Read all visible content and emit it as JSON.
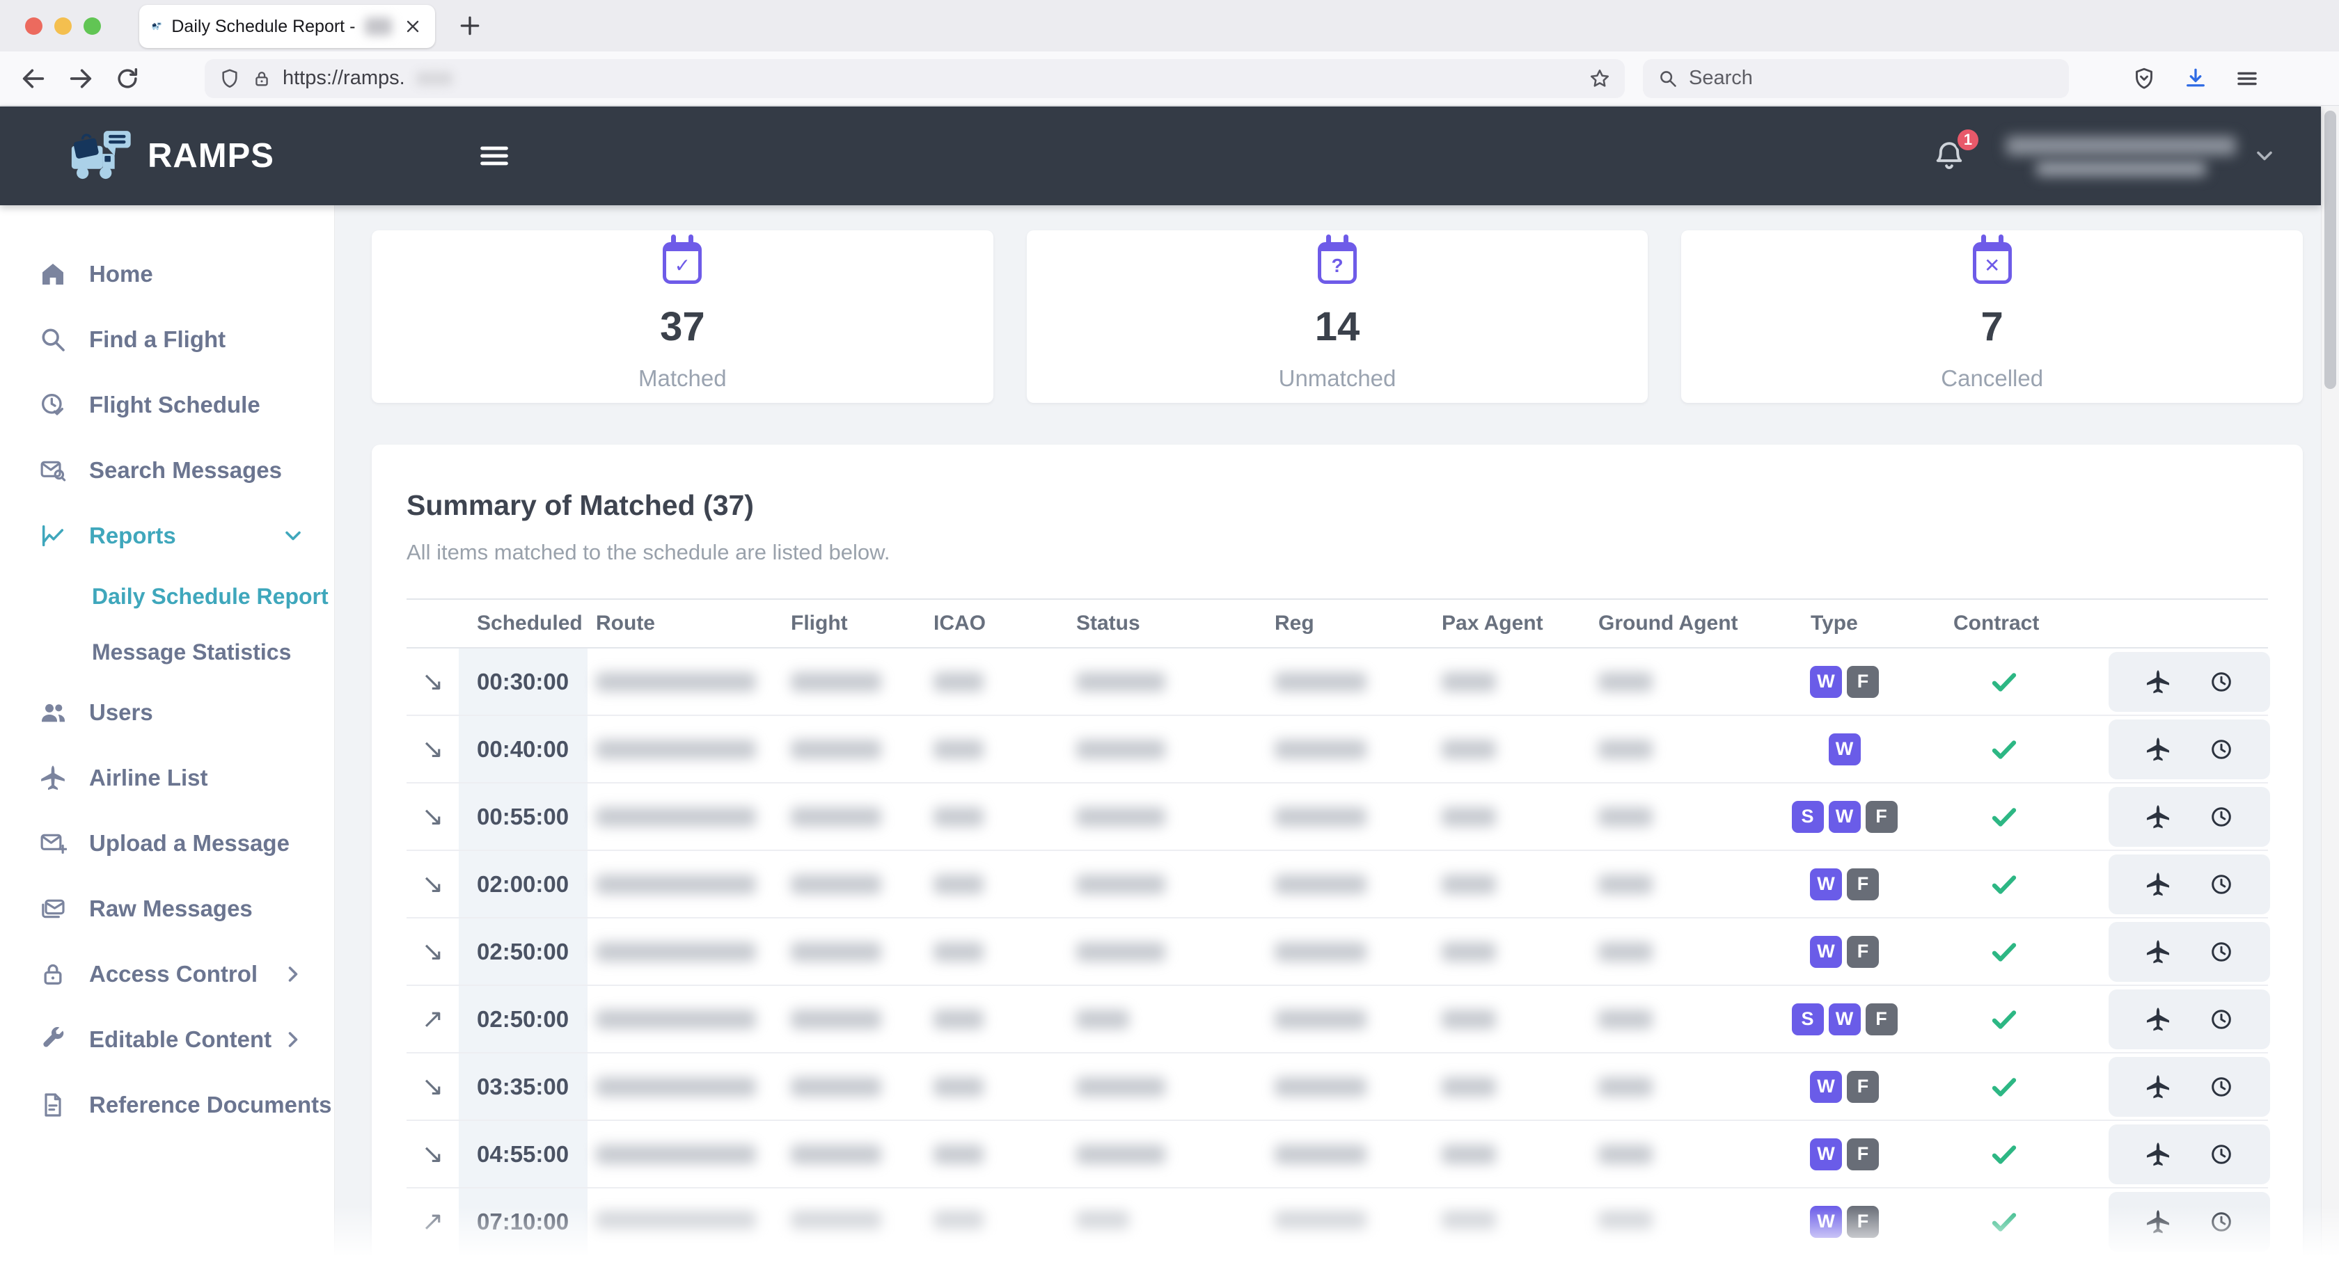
{
  "browser": {
    "tab_title": "Daily Schedule Report -",
    "tab_title_redacted_suffix": true,
    "url": "https://ramps.",
    "url_redacted_suffix": true,
    "search_placeholder": "Search"
  },
  "navbar": {
    "brand": "RAMPS",
    "notification_count": "1",
    "user_name_redacted": true
  },
  "sidebar": {
    "items": [
      {
        "label": "Home",
        "icon": "home"
      },
      {
        "label": "Find a Flight",
        "icon": "search"
      },
      {
        "label": "Flight Schedule",
        "icon": "clock-check"
      },
      {
        "label": "Search Messages",
        "icon": "mail-search"
      },
      {
        "label": "Reports",
        "icon": "chart",
        "active": true,
        "expand": "down"
      },
      {
        "label": "Daily Schedule Report",
        "sub": true,
        "active": true
      },
      {
        "label": "Message Statistics",
        "sub": true
      },
      {
        "label": "Users",
        "icon": "users"
      },
      {
        "label": "Airline List",
        "icon": "plane"
      },
      {
        "label": "Upload a Message",
        "icon": "mail-plus"
      },
      {
        "label": "Raw Messages",
        "icon": "mails"
      },
      {
        "label": "Access Control",
        "icon": "lock",
        "expand": "right"
      },
      {
        "label": "Editable Content",
        "icon": "wrench",
        "expand": "right"
      },
      {
        "label": "Reference Documents",
        "icon": "doc"
      }
    ]
  },
  "stats": [
    {
      "icon": "calendar-check",
      "value": "37",
      "label": "Matched"
    },
    {
      "icon": "calendar-question",
      "value": "14",
      "label": "Unmatched"
    },
    {
      "icon": "calendar-cancel",
      "value": "7",
      "label": "Cancelled"
    }
  ],
  "summary": {
    "title": "Summary of Matched (37)",
    "subtitle": "All items matched to the schedule are listed below."
  },
  "table": {
    "columns": [
      "Scheduled",
      "Route",
      "Flight",
      "ICAO",
      "Status",
      "Reg",
      "Pax Agent",
      "Ground Agent",
      "Type",
      "Contract"
    ],
    "redacted_columns": [
      "Route",
      "Flight",
      "ICAO",
      "Status",
      "Reg",
      "Pax Agent",
      "Ground Agent"
    ],
    "rows": [
      {
        "direction": "arrival",
        "scheduled": "00:30:00",
        "type": [
          "W",
          "F"
        ],
        "contract": true
      },
      {
        "direction": "arrival",
        "scheduled": "00:40:00",
        "type": [
          "W"
        ],
        "contract": true
      },
      {
        "direction": "arrival",
        "scheduled": "00:55:00",
        "type": [
          "S",
          "W",
          "F"
        ],
        "contract": true
      },
      {
        "direction": "arrival",
        "scheduled": "02:00:00",
        "type": [
          "W",
          "F"
        ],
        "contract": true
      },
      {
        "direction": "arrival",
        "scheduled": "02:50:00",
        "type": [
          "W",
          "F"
        ],
        "contract": true
      },
      {
        "direction": "departure",
        "scheduled": "02:50:00",
        "type": [
          "S",
          "W",
          "F"
        ],
        "contract": true
      },
      {
        "direction": "arrival",
        "scheduled": "03:35:00",
        "type": [
          "W",
          "F"
        ],
        "contract": true
      },
      {
        "direction": "arrival",
        "scheduled": "04:55:00",
        "type": [
          "W",
          "F"
        ],
        "contract": true
      },
      {
        "direction": "departure",
        "scheduled": "07:10:00",
        "type": [
          "W",
          "F"
        ],
        "contract": true
      }
    ]
  },
  "colors": {
    "navbar_bg": "#343b46",
    "accent_teal": "#3fa7bc",
    "icon_purple": "#6e5be8",
    "badge_purple": "#6a5ce8",
    "badge_gray": "#686d77",
    "check_green": "#2db784",
    "notification_red": "#e8596a"
  }
}
